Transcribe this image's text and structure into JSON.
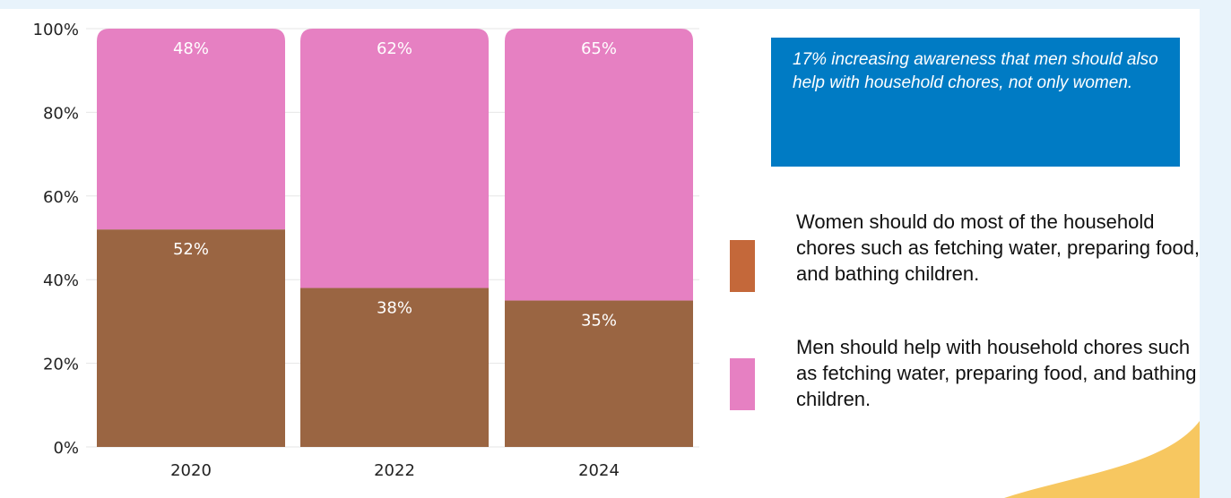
{
  "chart_data": {
    "type": "bar",
    "stacked": true,
    "categories": [
      "2020",
      "2022",
      "2024"
    ],
    "series": [
      {
        "name": "Women should do most of the household chores such as fetching water, preparing food, and bathing children.",
        "values": [
          52,
          38,
          35
        ],
        "color": "#9a6542",
        "labels": [
          "52%",
          "38%",
          "35%"
        ]
      },
      {
        "name": "Men should help with household chores such as fetching water, preparing food, and bathing children.",
        "values": [
          48,
          62,
          65
        ],
        "color": "#e680c2",
        "labels": [
          "48%",
          "62%",
          "65%"
        ]
      }
    ],
    "ylim": [
      0,
      100
    ],
    "yticks": [
      "0%",
      "20%",
      "40%",
      "60%",
      "80%",
      "100%"
    ],
    "grid": true,
    "legend_position": "right"
  },
  "callout": {
    "text": "17% increasing awareness that men should also help with household chores, not only women."
  },
  "legend": [
    {
      "label": "Women should do most of the household chores such as fetching water, preparing food, and bathing children.",
      "color": "#c4683a"
    },
    {
      "label": "Men should help with household chores such as fetching water, preparing food, and bathing children.",
      "color": "#e680c2"
    }
  ],
  "colors": {
    "background": "#e8f3fb",
    "card": "#ffffff",
    "callout": "#007bc4",
    "accent_wave": "#f7c457"
  }
}
